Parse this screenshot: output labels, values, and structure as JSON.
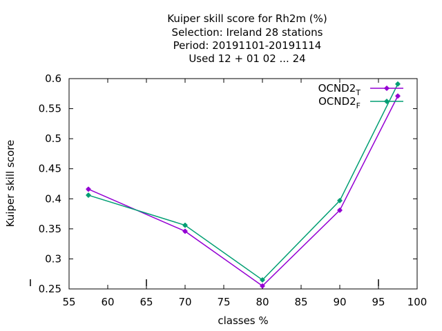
{
  "chart_data": {
    "type": "line",
    "title_lines": [
      "Kuiper skill score  for Rh2m (%)",
      "Selection: Ireland     28 stations",
      "Period: 20191101-20191114",
      "Used  12 + 01 02 ... 24"
    ],
    "xlabel": "classes %",
    "ylabel": "Kuiper skill score",
    "xlim": [
      55,
      100
    ],
    "ylim": [
      0.25,
      0.6
    ],
    "x_ticks": [
      55,
      60,
      65,
      70,
      75,
      80,
      85,
      90,
      95,
      100
    ],
    "y_ticks": [
      "0.25",
      "0.3",
      "0.35",
      "0.4",
      "0.45",
      "0.5",
      "0.55",
      "0.6"
    ],
    "grid": false,
    "legend_position": "top-right",
    "series": [
      {
        "name": "OCND2",
        "subscript": "T",
        "color": "#9400d3",
        "x": [
          57.5,
          70,
          80,
          90,
          97.5
        ],
        "values": [
          0.416,
          0.346,
          0.255,
          0.381,
          0.571
        ]
      },
      {
        "name": "OCND2",
        "subscript": "F",
        "color": "#009e73",
        "x": [
          57.5,
          70,
          80,
          90,
          97.5
        ],
        "values": [
          0.406,
          0.356,
          0.265,
          0.397,
          0.591
        ]
      }
    ]
  }
}
